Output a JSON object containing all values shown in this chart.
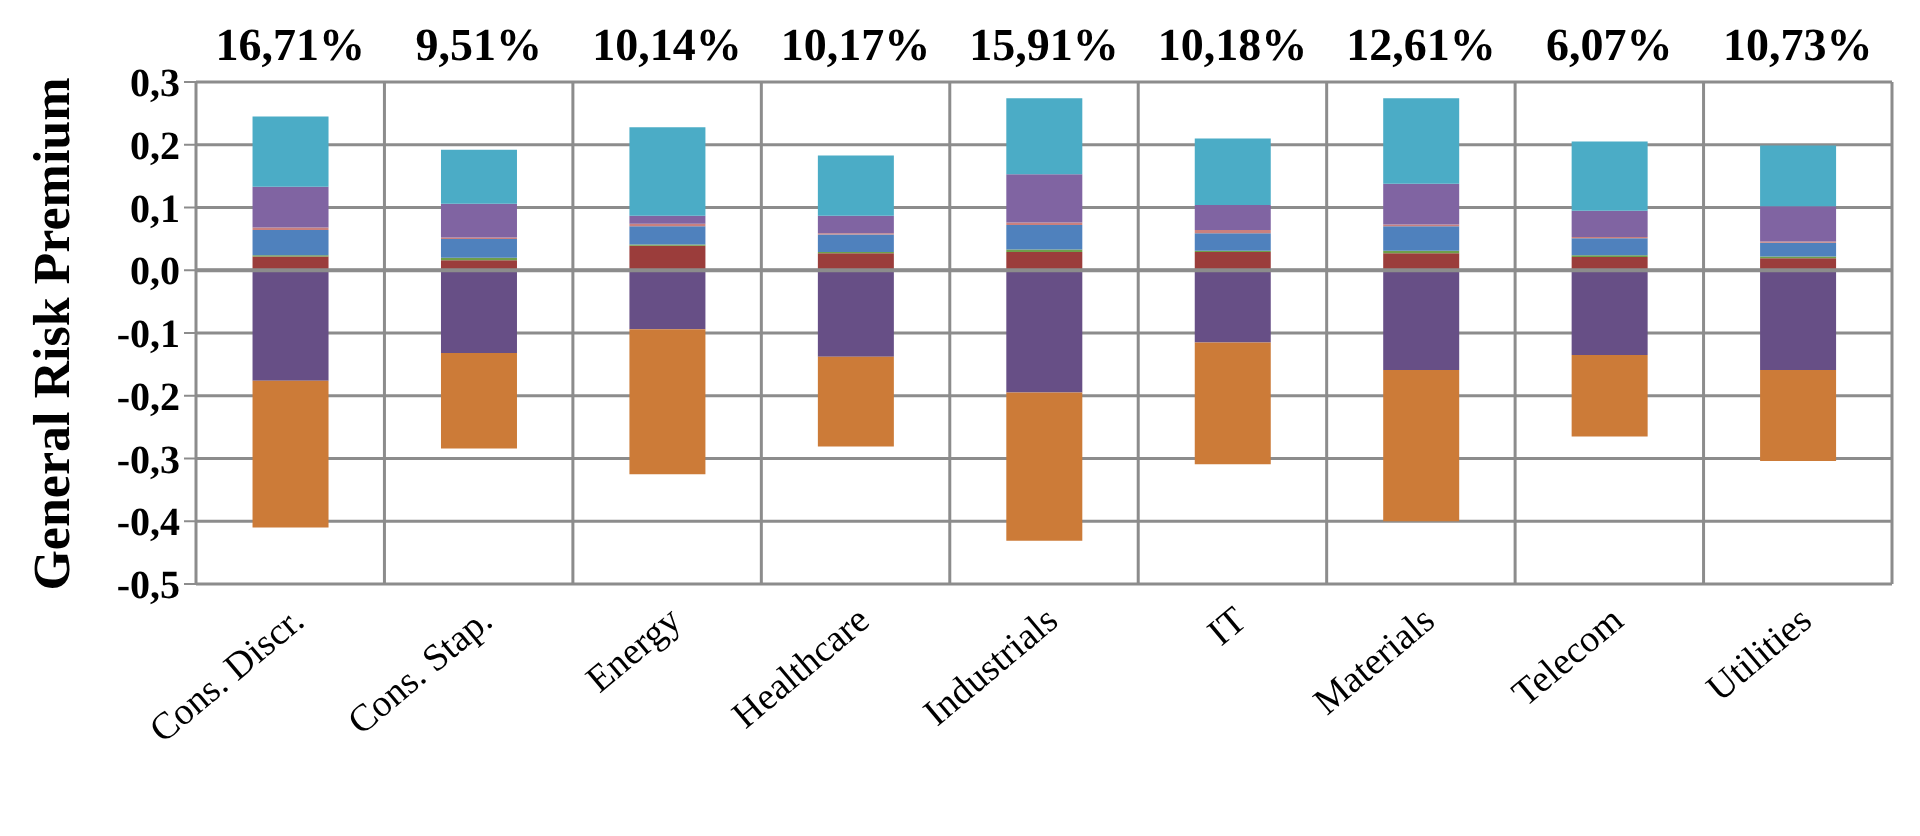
{
  "chart_data": {
    "type": "bar",
    "stacked": true,
    "ylabel": "General Risk Premium",
    "categories": [
      "Cons. Discr.",
      "Cons. Stap.",
      "Energy",
      "Healthcare",
      "Industrials",
      "IT",
      "Materials",
      "Telecom",
      "Utilities"
    ],
    "series": [
      {
        "color": "#9b3d3b",
        "values": [
          0.022,
          0.016,
          0.039,
          0.027,
          0.029,
          0.029,
          0.027,
          0.021,
          0.019
        ]
      },
      {
        "color": "#6f9e4a",
        "values": [
          0.002,
          0.004,
          0.002,
          0.002,
          0.004,
          0.002,
          0.004,
          0.003,
          0.003
        ]
      },
      {
        "color": "#4f81bd",
        "values": [
          0.04,
          0.03,
          0.029,
          0.028,
          0.039,
          0.028,
          0.039,
          0.027,
          0.022
        ]
      },
      {
        "color": "#c9807e",
        "values": [
          0.004,
          0.002,
          0.004,
          0.002,
          0.004,
          0.005,
          0.003,
          0.002,
          0.002
        ]
      },
      {
        "color": "#8064a2",
        "values": [
          0.065,
          0.054,
          0.013,
          0.028,
          0.077,
          0.04,
          0.065,
          0.042,
          0.056
        ]
      },
      {
        "color": "#4bacc6",
        "values": [
          0.112,
          0.086,
          0.141,
          0.096,
          0.121,
          0.106,
          0.136,
          0.11,
          0.097
        ]
      },
      {
        "color": "#674f86",
        "values": [
          -0.176,
          -0.132,
          -0.094,
          -0.138,
          -0.195,
          -0.115,
          -0.159,
          -0.135,
          -0.159
        ]
      },
      {
        "color": "#cc7b38",
        "values": [
          -0.234,
          -0.152,
          -0.231,
          -0.143,
          -0.236,
          -0.194,
          -0.241,
          -0.13,
          -0.145
        ]
      }
    ],
    "ylim": [
      -0.5,
      0.3
    ],
    "yticks": [
      {
        "value": 0.3,
        "label": "0,3"
      },
      {
        "value": 0.2,
        "label": "0,2"
      },
      {
        "value": 0.1,
        "label": "0,1"
      },
      {
        "value": 0,
        "label": "0,0"
      },
      {
        "value": -0.1,
        "label": "-0,1"
      },
      {
        "value": -0.2,
        "label": "-0,2"
      },
      {
        "value": -0.3,
        "label": "-0,3"
      },
      {
        "value": -0.4,
        "label": "-0,4"
      },
      {
        "value": -0.5,
        "label": "-0,5"
      }
    ],
    "grid": true,
    "legend": false,
    "annotations": [
      "16,71%",
      "9,51%",
      "10,14%",
      "10,17%",
      "15,91%",
      "10,18%",
      "12,61%",
      "6,07%",
      "10,73%"
    ]
  }
}
